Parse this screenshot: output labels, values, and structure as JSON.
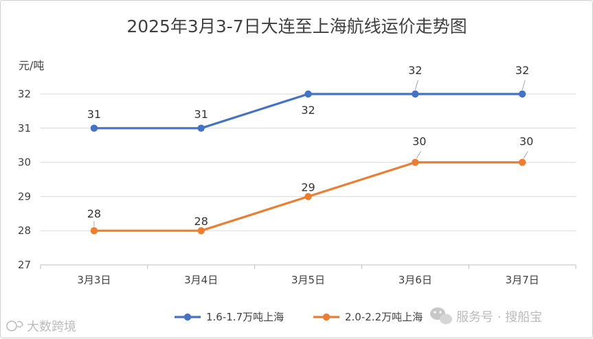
{
  "chart_data": {
    "type": "line",
    "title": "2025年3月3-7日大连至上海航线运价走势图",
    "ylabel": "元/吨",
    "xlabel": "",
    "categories": [
      "3月3日",
      "3月4日",
      "3月5日",
      "3月6日",
      "3月7日"
    ],
    "ylim": [
      27,
      32
    ],
    "yticks": [
      "27",
      "28",
      "29",
      "30",
      "31",
      "32"
    ],
    "grid": true,
    "legend_position": "bottom",
    "series": [
      {
        "name": "1.6-1.7万吨上海",
        "color": "#4472c4",
        "values": [
          31,
          31,
          32,
          32,
          32
        ],
        "labels": [
          "31",
          "31",
          "32",
          "32",
          "32"
        ]
      },
      {
        "name": "2.0-2.2万吨上海",
        "color": "#ed7d31",
        "values": [
          28,
          28,
          29,
          30,
          30
        ],
        "labels": [
          "28",
          "28",
          "29",
          "30",
          "30"
        ]
      }
    ]
  },
  "watermarks": {
    "left": "大数跨境",
    "right": "服务号 · 搜船宝"
  }
}
